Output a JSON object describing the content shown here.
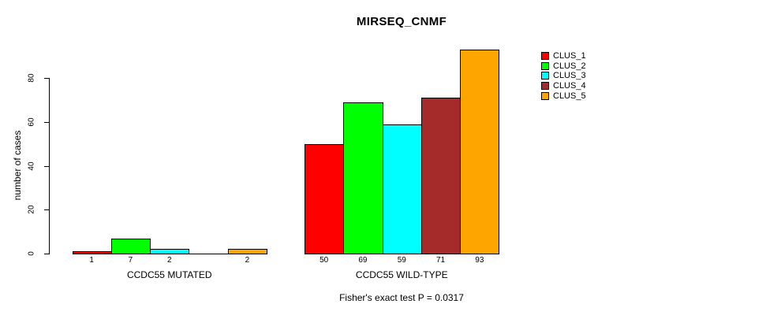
{
  "title": "MIRSEQ_CNMF",
  "chart_data": {
    "type": "bar",
    "title": "MIRSEQ_CNMF",
    "ylabel": "number of cases",
    "xlabel": "",
    "yticks": [
      0,
      20,
      40,
      60,
      80
    ],
    "ylim": [
      0,
      93
    ],
    "grid": false,
    "legend_position": "right",
    "legend": [
      "CLUS_1",
      "CLUS_2",
      "CLUS_3",
      "CLUS_4",
      "CLUS_5"
    ],
    "series_colors": [
      "#FF0000",
      "#00FF00",
      "#00FFFF",
      "#A52A2A",
      "#FFA500"
    ],
    "bar_border_color": "#000000",
    "groups": [
      {
        "label": "CCDC55 MUTATED",
        "values": [
          1,
          7,
          2,
          0,
          2
        ],
        "value_labels": [
          "1",
          "7",
          "2",
          "",
          "2"
        ]
      },
      {
        "label": "CCDC55 WILD-TYPE",
        "values": [
          50,
          69,
          59,
          71,
          93
        ],
        "value_labels": [
          "50",
          "69",
          "59",
          "71",
          "93"
        ]
      }
    ],
    "annotation": "Fisher's exact test P = 0.0317"
  }
}
